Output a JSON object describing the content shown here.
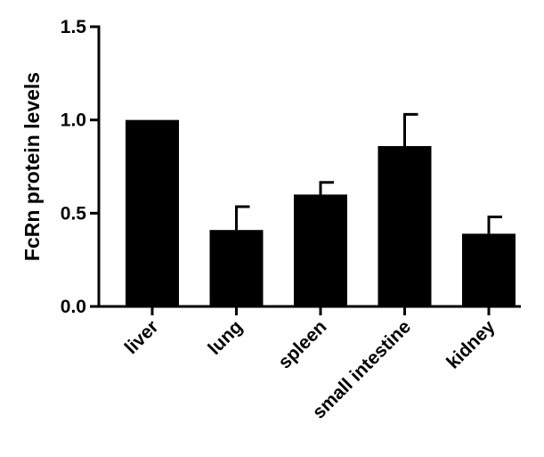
{
  "chart_data": {
    "type": "bar",
    "title": "",
    "xlabel": "",
    "ylabel": "FcRn protein levels",
    "categories": [
      "liver",
      "lung",
      "spleen",
      "small intestine",
      "kidney"
    ],
    "values": [
      1.0,
      0.41,
      0.6,
      0.86,
      0.39
    ],
    "errors": [
      0.0,
      0.125,
      0.065,
      0.17,
      0.09
    ],
    "ylim": [
      0,
      1.5
    ],
    "yticks": [
      0.0,
      0.5,
      1.0,
      1.5
    ],
    "ytick_labels": [
      "0.0",
      "0.5",
      "1.0",
      "1.5"
    ],
    "grid": false,
    "legend": "none",
    "colors": {
      "bar": "#000000",
      "axis": "#000000"
    }
  }
}
